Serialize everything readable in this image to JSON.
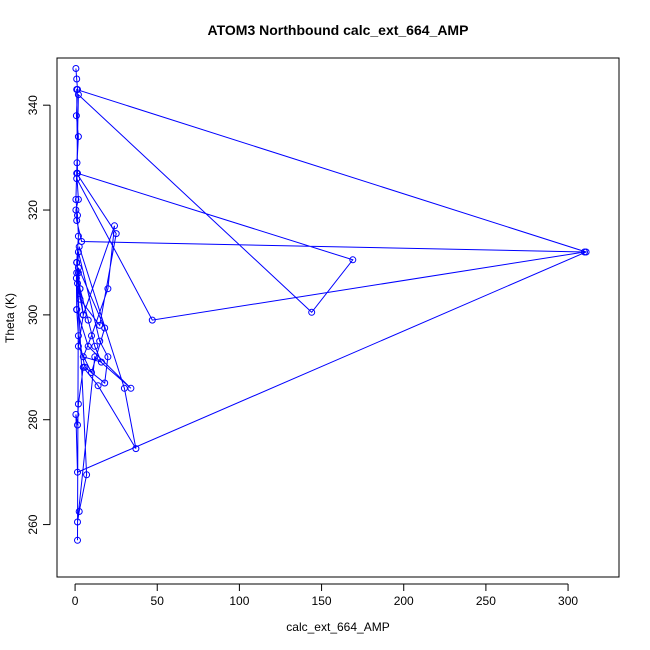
{
  "colors": {
    "series": "#0000ff",
    "axis": "#000000",
    "background": "#ffffff"
  },
  "chart_data": {
    "type": "line",
    "title": "ATOM3 Northbound calc_ext_664_AMP",
    "xlabel": "calc_ext_664_AMP",
    "ylabel": "Theta (K)",
    "xlim": [
      -11,
      331
    ],
    "ylim": [
      250,
      349
    ],
    "xticks": [
      0,
      50,
      100,
      150,
      200,
      250,
      300
    ],
    "yticks": [
      260,
      280,
      300,
      320,
      340
    ],
    "grid": false,
    "markers": "open-circle",
    "series": [
      {
        "x": [
          0.5,
          1.0,
          1.5,
          0.8,
          2.0,
          1.2,
          0.5,
          1.5,
          2.0,
          1.0,
          3.0,
          5.0,
          24.0,
          20.0,
          10.0,
          5.0,
          16.0,
          12.0,
          8.0,
          3.0,
          1.0,
          2.0,
          15.0,
          20.0,
          18.0,
          6.0,
          2.0,
          1.0,
          0.8,
          2.5,
          30.0,
          37.0,
          14.0,
          5.0,
          2.0,
          1.5,
          0.5,
          1.5,
          311.0,
          1.0,
          1.5,
          169.0,
          144.0,
          2.0,
          1.0,
          47.0,
          310.0,
          4.0,
          1.0,
          0.5,
          2.0,
          1.0,
          25.0,
          15.0,
          3.0,
          2.0,
          18.0,
          10.0,
          2.0,
          5.0,
          1.5,
          1.0,
          7.0,
          2.5,
          1.5,
          12.0,
          34.0,
          8.0,
          1.0,
          2.0,
          1.5
        ],
        "y": [
          347,
          345,
          343,
          338,
          334,
          329,
          322,
          319,
          315,
          310,
          305,
          300,
          317,
          305,
          296,
          292,
          291,
          294,
          299,
          305,
          308,
          312,
          295,
          292,
          287,
          290,
          296,
          301,
          307,
          313,
          286,
          274.5,
          286.5,
          290,
          283,
          279,
          281,
          270,
          312,
          343,
          327,
          310.5,
          300.5,
          342,
          326,
          299,
          312,
          314,
          318,
          320,
          322,
          327,
          315.5,
          298,
          303,
          309,
          297.5,
          289,
          294,
          300,
          306,
          310,
          269.5,
          262.5,
          260.5,
          292,
          286,
          294,
          301,
          308,
          257
        ]
      }
    ]
  }
}
